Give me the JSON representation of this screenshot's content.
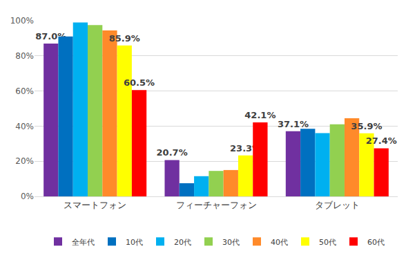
{
  "chart_data": {
    "type": "bar",
    "categories": [
      "スマートフォン",
      "フィーチャーフォン",
      "タブレット"
    ],
    "series": [
      {
        "name": "全年代",
        "color": "#7030a0",
        "values": [
          87.0,
          20.7,
          37.1
        ],
        "value_labels": [
          "87.0%",
          "20.7%",
          "37.1%"
        ]
      },
      {
        "name": "10代",
        "color": "#0070c0",
        "values": [
          91,
          7.5,
          38.5
        ]
      },
      {
        "name": "20代",
        "color": "#00b0f0",
        "values": [
          99,
          11.5,
          36
        ]
      },
      {
        "name": "30代",
        "color": "#92d050",
        "values": [
          97.5,
          14.5,
          41
        ]
      },
      {
        "name": "40代",
        "color": "#ff8a2a",
        "values": [
          94.5,
          15,
          44.5
        ]
      },
      {
        "name": "50代",
        "color": "#ffff00",
        "values": [
          85.9,
          23.3,
          35.9
        ],
        "value_labels": [
          "85.9%",
          "23.3%",
          "35.9%"
        ]
      },
      {
        "name": "60代",
        "color": "#ff0000",
        "values": [
          60.5,
          42.1,
          27.4
        ],
        "value_labels": [
          "60.5%",
          "42.1%",
          "27.4%"
        ]
      }
    ],
    "ylim": [
      0,
      100
    ],
    "yticks": [
      {
        "value": 0,
        "label": "0%"
      },
      {
        "value": 20,
        "label": "20%"
      },
      {
        "value": 40,
        "label": "40%"
      },
      {
        "value": 60,
        "label": "60%"
      },
      {
        "value": 80,
        "label": "80%"
      },
      {
        "value": 100,
        "label": "100%"
      }
    ],
    "grid": true,
    "legend": "bottom",
    "data_labels": true
  }
}
